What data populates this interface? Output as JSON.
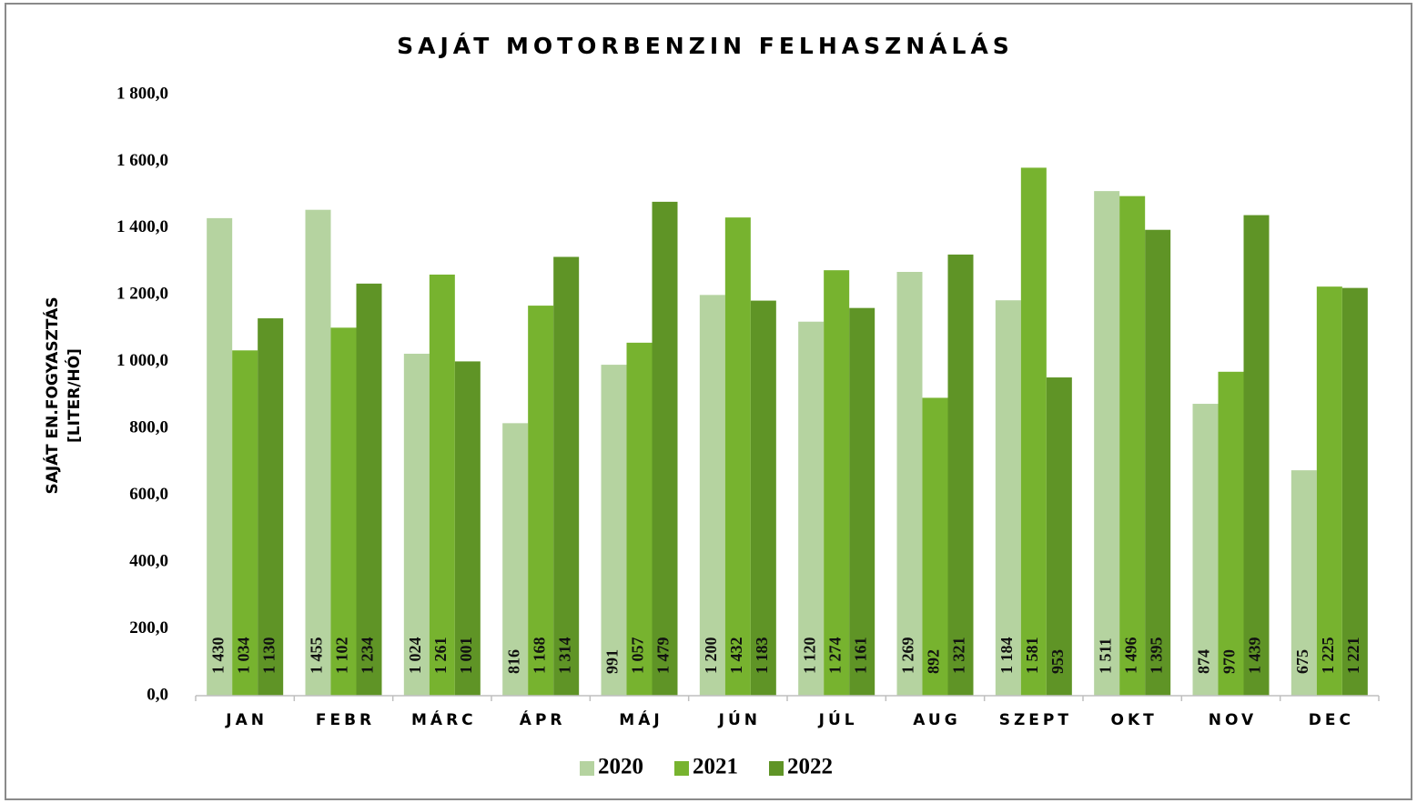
{
  "chart_data": {
    "type": "bar",
    "title": "SAJÁT MOTORBENZIN FELHASZNÁLÁS",
    "y_label": [
      "SAJÁT EN.FOGYASZTÁS",
      "[LITER/HÓ]"
    ],
    "categories": [
      "JAN",
      "FEBR",
      "MÁRC",
      "ÁPR",
      "MÁJ",
      "JÚN",
      "JÚL",
      "AUG",
      "SZEPT",
      "OKT",
      "NOV",
      "DEC"
    ],
    "series": [
      {
        "name": "2020",
        "color": "#b5d3a0",
        "values": [
          1430,
          1455,
          1024,
          816,
          991,
          1200,
          1120,
          1269,
          1184,
          1511,
          874,
          675
        ],
        "value_labels": [
          "1 430",
          "1 455",
          "1 024",
          "816",
          "991",
          "1 200",
          "1 120",
          "1 269",
          "1 184",
          "1 511",
          "874",
          "675"
        ]
      },
      {
        "name": "2021",
        "color": "#77b32f",
        "values": [
          1034,
          1102,
          1261,
          1168,
          1057,
          1432,
          1274,
          892,
          1581,
          1496,
          970,
          1225
        ],
        "value_labels": [
          "1 034",
          "1 102",
          "1 261",
          "1 168",
          "1 057",
          "1 432",
          "1 274",
          "892",
          "1 581",
          "1 496",
          "970",
          "1 225"
        ]
      },
      {
        "name": "2022",
        "color": "#5f9426",
        "values": [
          1130,
          1234,
          1001,
          1314,
          1479,
          1183,
          1161,
          1321,
          953,
          1395,
          1439,
          1221
        ],
        "value_labels": [
          "1 130",
          "1 234",
          "1 001",
          "1 314",
          "1 479",
          "1 183",
          "1 161",
          "1 321",
          "953",
          "1 395",
          "1 439",
          "1 221"
        ]
      }
    ],
    "ylim": [
      0,
      1800
    ],
    "yticks": [
      {
        "value": 0,
        "label": "0,0"
      },
      {
        "value": 200,
        "label": "200,0"
      },
      {
        "value": 400,
        "label": "400,0"
      },
      {
        "value": 600,
        "label": "600,0"
      },
      {
        "value": 800,
        "label": "800,0"
      },
      {
        "value": 1000,
        "label": "1 000,0"
      },
      {
        "value": 1200,
        "label": "1 200,0"
      },
      {
        "value": 1400,
        "label": "1 400,0"
      },
      {
        "value": 1600,
        "label": "1 600,0"
      },
      {
        "value": 1800,
        "label": "1 800,0"
      }
    ],
    "grid": false,
    "legend": "bottom"
  }
}
